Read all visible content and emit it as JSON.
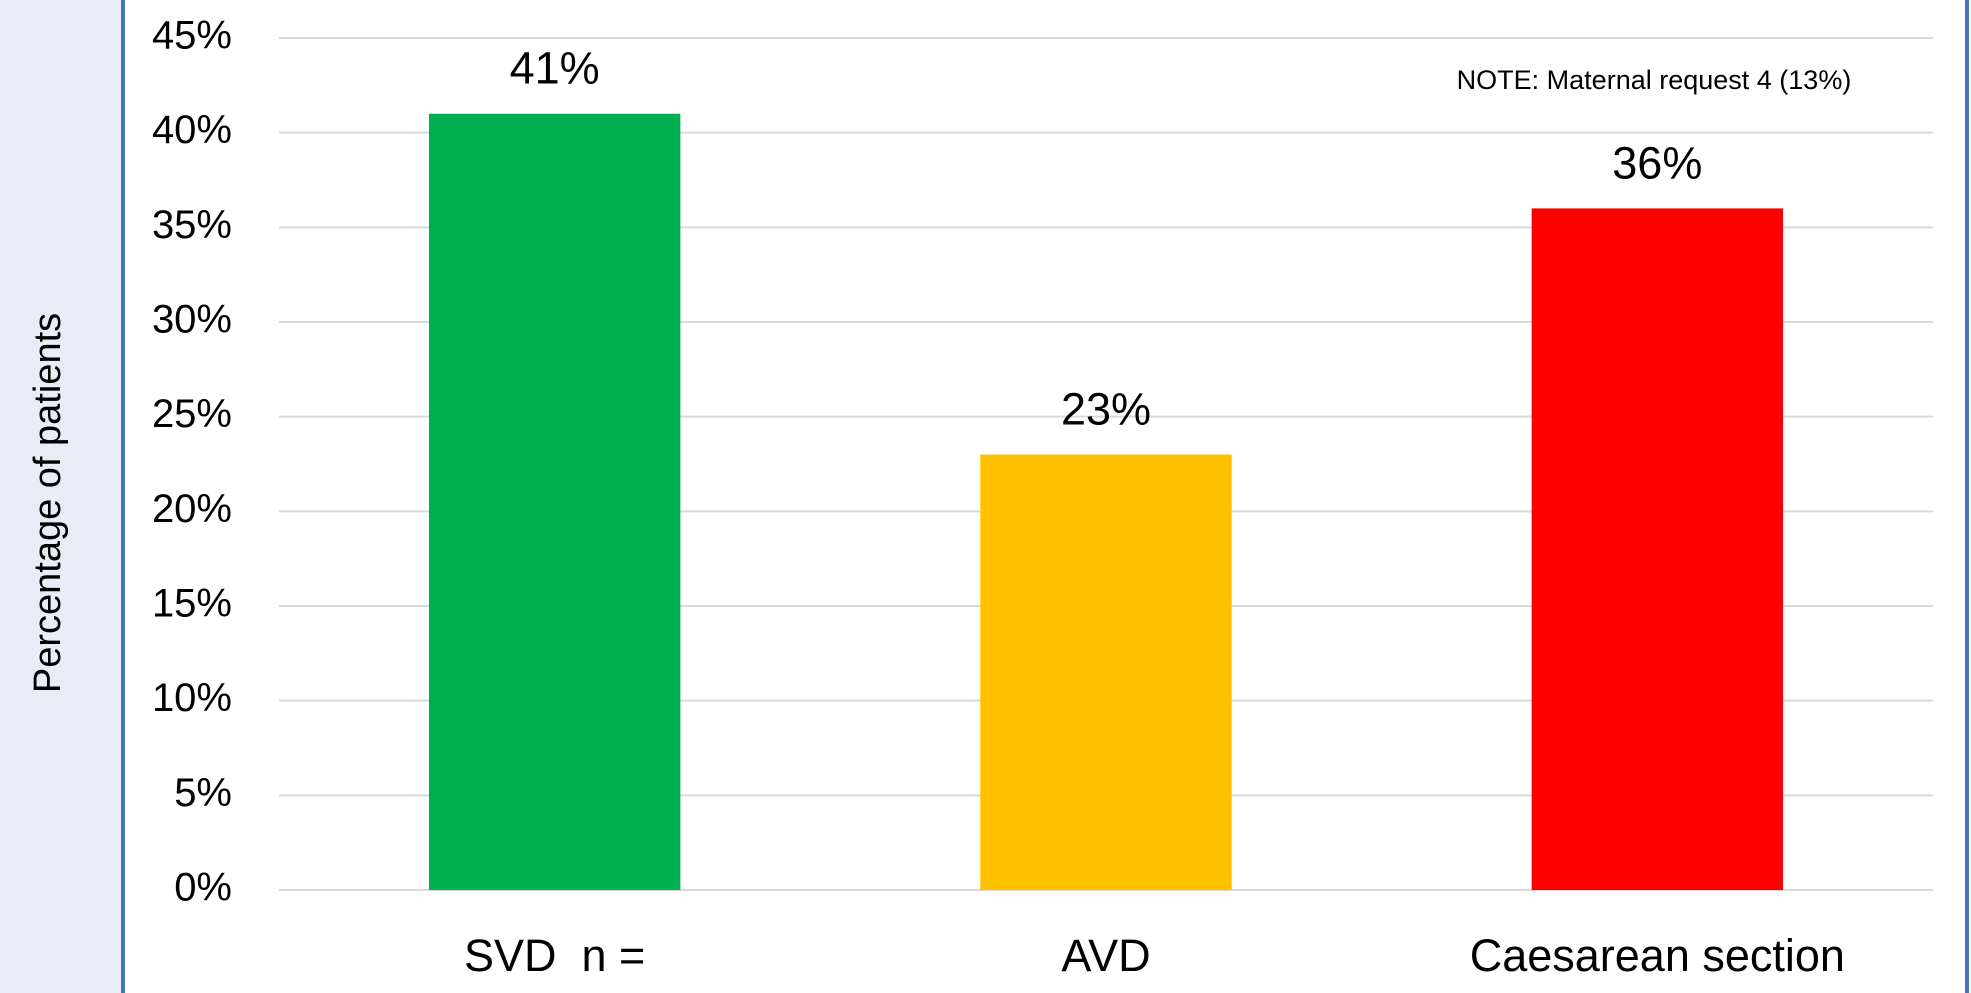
{
  "chart_data": {
    "type": "bar",
    "y_label": "Percentage of patients",
    "annotation": "NOTE: Maternal request 4 (13%)",
    "categories": [
      "SVD  n =",
      "AVD",
      "Caesarean section"
    ],
    "values": [
      41,
      23,
      36
    ],
    "value_labels": [
      "41%",
      "23%",
      "36%"
    ],
    "colors": [
      "#00b050",
      "#ffc000",
      "#ff0000"
    ],
    "ylim": [
      0,
      45
    ],
    "yticks": [
      {
        "value": 0,
        "label": "0%"
      },
      {
        "value": 5,
        "label": "5%"
      },
      {
        "value": 10,
        "label": "10%"
      },
      {
        "value": 15,
        "label": "15%"
      },
      {
        "value": 20,
        "label": "20%"
      },
      {
        "value": 25,
        "label": "25%"
      },
      {
        "value": 30,
        "label": "30%"
      },
      {
        "value": 35,
        "label": "35%"
      },
      {
        "value": 40,
        "label": "40%"
      },
      {
        "value": 45,
        "label": "45%"
      }
    ],
    "grid": true
  }
}
